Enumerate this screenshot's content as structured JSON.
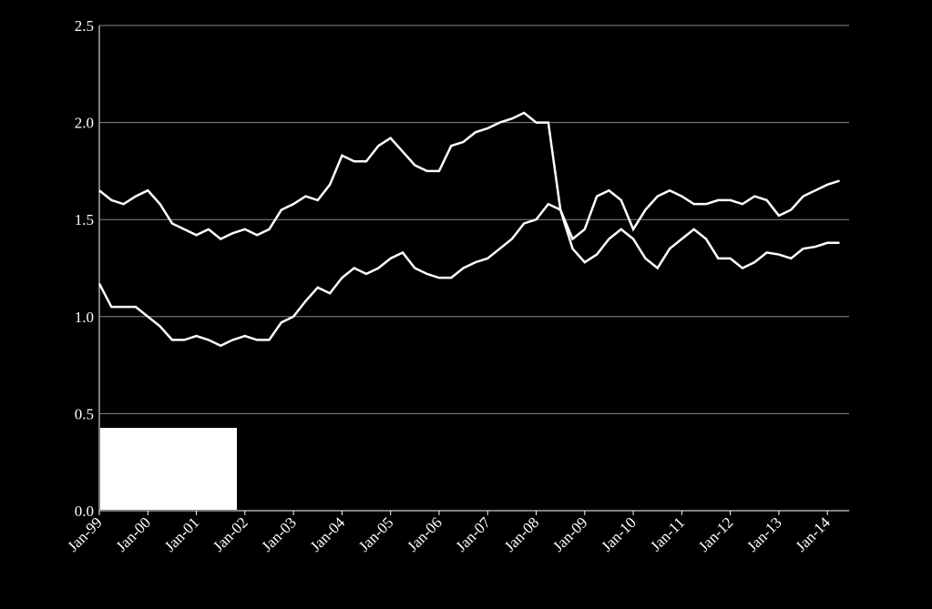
{
  "chart_data": {
    "type": "line",
    "x": [
      "Jan-99",
      "Apr-99",
      "Jul-99",
      "Oct-99",
      "Jan-00",
      "Apr-00",
      "Jul-00",
      "Oct-00",
      "Jan-01",
      "Apr-01",
      "Jul-01",
      "Oct-01",
      "Jan-02",
      "Apr-02",
      "Jul-02",
      "Oct-02",
      "Jan-03",
      "Apr-03",
      "Jul-03",
      "Oct-03",
      "Jan-04",
      "Apr-04",
      "Jul-04",
      "Oct-04",
      "Jan-05",
      "Apr-05",
      "Jul-05",
      "Oct-05",
      "Jan-06",
      "Apr-06",
      "Jul-06",
      "Oct-06",
      "Jan-07",
      "Apr-07",
      "Jul-07",
      "Oct-07",
      "Jan-08",
      "Apr-08",
      "Jul-08",
      "Oct-08",
      "Jan-09",
      "Apr-09",
      "Jul-09",
      "Oct-09",
      "Jan-10",
      "Apr-10",
      "Jul-10",
      "Oct-10",
      "Jan-11",
      "Apr-11",
      "Jul-11",
      "Oct-11",
      "Jan-12",
      "Apr-12",
      "Jul-12",
      "Oct-12",
      "Jan-13",
      "Apr-13",
      "Jul-13",
      "Oct-13",
      "Jan-14",
      "Apr-14"
    ],
    "xticks": [
      "Jan-99",
      "Jan-00",
      "Jan-01",
      "Jan-02",
      "Jan-03",
      "Jan-04",
      "Jan-05",
      "Jan-06",
      "Jan-07",
      "Jan-08",
      "Jan-09",
      "Jan-10",
      "Jan-11",
      "Jan-12",
      "Jan-13",
      "Jan-14"
    ],
    "series": [
      {
        "color": "#ffffff",
        "values": [
          1.65,
          1.6,
          1.58,
          1.62,
          1.65,
          1.58,
          1.48,
          1.45,
          1.42,
          1.45,
          1.4,
          1.43,
          1.45,
          1.42,
          1.45,
          1.55,
          1.58,
          1.62,
          1.6,
          1.68,
          1.83,
          1.8,
          1.8,
          1.88,
          1.92,
          1.85,
          1.78,
          1.75,
          1.75,
          1.88,
          1.9,
          1.95,
          1.97,
          2.0,
          2.02,
          2.05,
          2.0,
          2.0,
          1.55,
          1.4,
          1.45,
          1.62,
          1.65,
          1.6,
          1.45,
          1.55,
          1.62,
          1.65,
          1.62,
          1.58,
          1.58,
          1.6,
          1.6,
          1.58,
          1.62,
          1.6,
          1.52,
          1.55,
          1.62,
          1.65,
          1.68,
          1.7
        ]
      },
      {
        "color": "#ffffff",
        "values": [
          1.17,
          1.05,
          1.05,
          1.05,
          1.0,
          0.95,
          0.88,
          0.88,
          0.9,
          0.88,
          0.85,
          0.88,
          0.9,
          0.88,
          0.88,
          0.97,
          1.0,
          1.08,
          1.15,
          1.12,
          1.2,
          1.25,
          1.22,
          1.25,
          1.3,
          1.33,
          1.25,
          1.22,
          1.2,
          1.2,
          1.25,
          1.28,
          1.3,
          1.35,
          1.4,
          1.48,
          1.5,
          1.58,
          1.55,
          1.35,
          1.28,
          1.32,
          1.4,
          1.45,
          1.4,
          1.3,
          1.25,
          1.35,
          1.4,
          1.45,
          1.4,
          1.3,
          1.3,
          1.25,
          1.28,
          1.33,
          1.32,
          1.3,
          1.35,
          1.36,
          1.38,
          1.38
        ]
      }
    ],
    "ylim": [
      0,
      2.5
    ],
    "yticks": [
      {
        "value": 0,
        "label": "0.0"
      },
      0.5,
      {
        "value": 1,
        "label": "1.0"
      },
      1.5,
      {
        "value": 2,
        "label": "2.0"
      },
      2.5
    ],
    "grid": true
  }
}
